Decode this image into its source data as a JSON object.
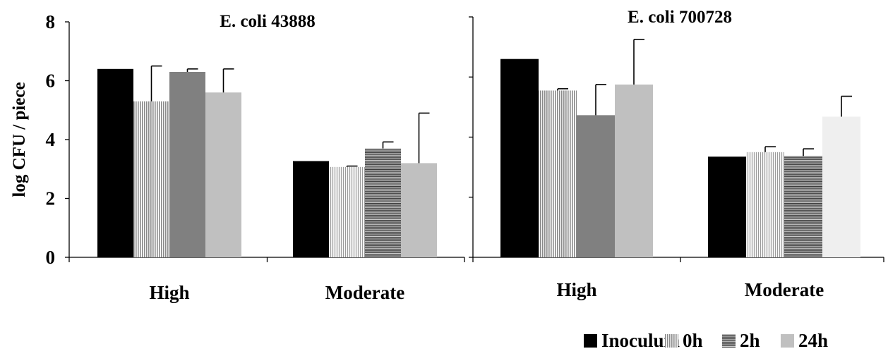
{
  "chart_data": [
    {
      "type": "bar",
      "title": "E. coli 43888",
      "ylabel": "log CFU /  piece",
      "xlabel": "",
      "ylim": [
        0,
        8
      ],
      "yticks": [
        0,
        2,
        4,
        6,
        8
      ],
      "y_tick_labels_shown": true,
      "categories": [
        "High",
        "Moderate"
      ],
      "series": [
        {
          "name": "Inoculum",
          "values": [
            6.4,
            3.27
          ],
          "errors": [
            null,
            null
          ]
        },
        {
          "name": "0h",
          "values": [
            5.3,
            3.07
          ],
          "errors": [
            1.2,
            0.03
          ]
        },
        {
          "name": "2h",
          "values": [
            6.3,
            3.7
          ],
          "errors": [
            0.1,
            0.22
          ]
        },
        {
          "name": "24h",
          "values": [
            5.6,
            3.2
          ],
          "errors": [
            0.8,
            1.7
          ]
        }
      ],
      "grid": false
    },
    {
      "type": "bar",
      "title": "E. coli 700728",
      "ylabel": "",
      "xlabel": "",
      "ylim": [
        0,
        8
      ],
      "yticks": [
        0,
        2,
        4,
        6,
        8
      ],
      "y_tick_labels_shown": false,
      "categories": [
        "High",
        "Moderate"
      ],
      "series": [
        {
          "name": "Inoculum",
          "values": [
            6.6,
            3.35
          ],
          "errors": [
            null,
            null
          ]
        },
        {
          "name": "0h",
          "values": [
            5.55,
            3.5
          ],
          "errors": [
            0.06,
            0.18
          ]
        },
        {
          "name": "2h",
          "values": [
            4.73,
            3.37
          ],
          "errors": [
            1.02,
            0.24
          ]
        },
        {
          "name": "24h",
          "values": [
            5.75,
            4.68
          ],
          "errors": [
            1.5,
            0.68
          ]
        }
      ],
      "grid": false
    }
  ],
  "legend": {
    "placement": "bottom-right",
    "items": [
      "Inoculum",
      "0h",
      "2h",
      "24h"
    ]
  },
  "colors": {
    "inoculum": "#000000",
    "0h": "#b8b8b8",
    "2h": "#808080",
    "24h": "#c0c0c0",
    "24h_moderate_700728": "#efefef"
  }
}
